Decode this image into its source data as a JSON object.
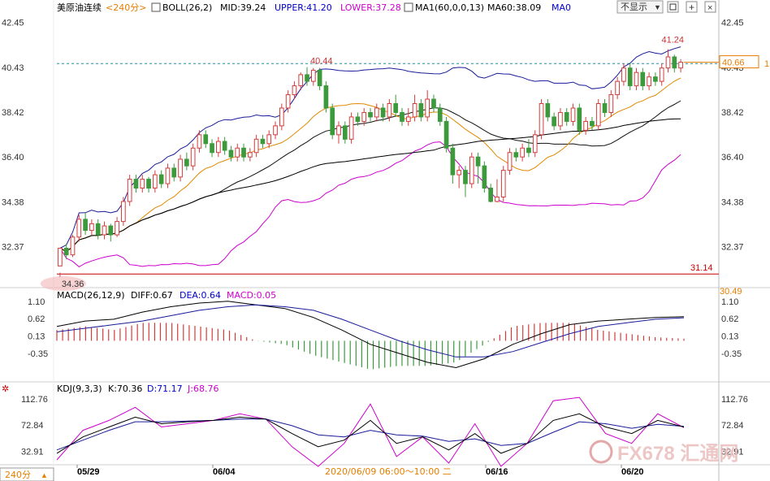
{
  "chart_data": {
    "type": "candlestick",
    "symbol": "美原油连续",
    "period": "<240分>",
    "period_footer": "240分",
    "hide_button": "不显示",
    "boll": {
      "label": "BOLL(26,2)",
      "mid_label": "MID:39.24",
      "upper_label": "UPPER:41.20",
      "lower_label": "LOWER:37.28"
    },
    "ma_label": "MA1(60,0,0,13)",
    "ma60_label": "MA60:38.09",
    "ma0_label": "MA0",
    "price_ylim": [
      30.6,
      42.8
    ],
    "price_ticks": [
      "42.45",
      "40.43",
      "38.42",
      "36.40",
      "34.38",
      "32.37"
    ],
    "price_ticks_val": [
      42.45,
      40.43,
      38.42,
      36.4,
      34.38,
      32.37
    ],
    "right_labels": {
      "bottom": "30.49",
      "current": "40.66",
      "edge": "1"
    },
    "current_price": 40.66,
    "reference_price": 40.6,
    "support_level": 31.14,
    "support_label": "31.14",
    "annotations": {
      "high1": "40.44",
      "high2": "41.24",
      "low": "34.36"
    },
    "candles": [
      [
        31.5,
        32.3,
        31.2,
        31.0
      ],
      [
        32.3,
        32.0,
        32.5,
        31.8
      ],
      [
        32.0,
        32.8,
        32.9,
        31.9
      ],
      [
        32.8,
        33.6,
        33.8,
        32.6
      ],
      [
        33.6,
        33.1,
        33.9,
        32.9
      ],
      [
        33.1,
        33.4,
        33.6,
        32.9
      ],
      [
        33.4,
        32.9,
        33.6,
        32.7
      ],
      [
        32.9,
        33.3,
        33.5,
        32.7
      ],
      [
        33.3,
        32.9,
        33.4,
        32.6
      ],
      [
        32.9,
        33.5,
        33.7,
        32.8
      ],
      [
        33.5,
        34.4,
        34.6,
        33.3
      ],
      [
        34.4,
        35.4,
        35.6,
        34.2
      ],
      [
        35.4,
        35.0,
        35.6,
        34.8
      ],
      [
        35.0,
        35.4,
        35.6,
        34.8
      ],
      [
        35.4,
        35.0,
        35.5,
        34.8
      ],
      [
        35.0,
        35.6,
        35.8,
        34.8
      ],
      [
        35.6,
        35.2,
        35.8,
        35.0
      ],
      [
        35.2,
        35.9,
        36.1,
        35.0
      ],
      [
        35.9,
        35.5,
        36.1,
        35.3
      ],
      [
        35.5,
        36.3,
        36.5,
        35.3
      ],
      [
        36.3,
        36.0,
        36.6,
        35.8
      ],
      [
        36.0,
        36.8,
        37.0,
        35.8
      ],
      [
        36.8,
        37.4,
        37.6,
        36.6
      ],
      [
        37.4,
        37.0,
        37.6,
        36.8
      ],
      [
        37.0,
        36.6,
        37.2,
        36.4
      ],
      [
        36.6,
        37.1,
        37.3,
        36.4
      ],
      [
        37.1,
        36.7,
        37.3,
        36.5
      ],
      [
        36.7,
        36.4,
        36.9,
        36.2
      ],
      [
        36.4,
        36.8,
        37.0,
        36.2
      ],
      [
        36.8,
        36.4,
        37.0,
        36.2
      ],
      [
        36.4,
        36.6,
        36.8,
        36.2
      ],
      [
        36.6,
        37.2,
        37.4,
        36.4
      ],
      [
        37.2,
        37.0,
        37.4,
        36.8
      ],
      [
        37.0,
        37.4,
        37.6,
        36.8
      ],
      [
        37.4,
        37.8,
        38.0,
        37.2
      ],
      [
        37.8,
        38.6,
        38.8,
        37.6
      ],
      [
        38.6,
        39.2,
        39.4,
        38.4
      ],
      [
        39.2,
        39.6,
        39.8,
        39.0
      ],
      [
        39.6,
        40.1,
        40.2,
        39.4
      ],
      [
        40.1,
        39.8,
        40.44,
        39.6
      ],
      [
        39.8,
        40.3,
        40.4,
        39.6
      ],
      [
        40.3,
        39.6,
        40.4,
        39.4
      ],
      [
        39.6,
        38.6,
        39.8,
        38.4
      ],
      [
        38.6,
        37.4,
        38.8,
        37.2
      ],
      [
        37.4,
        37.8,
        38.0,
        37.0
      ],
      [
        37.8,
        37.2,
        38.0,
        37.0
      ],
      [
        37.2,
        38.2,
        38.4,
        37.0
      ],
      [
        38.2,
        38.0,
        38.4,
        37.8
      ],
      [
        38.0,
        38.4,
        38.6,
        37.8
      ],
      [
        38.4,
        38.2,
        38.6,
        38.0
      ],
      [
        38.2,
        38.6,
        38.8,
        38.0
      ],
      [
        38.6,
        38.2,
        38.8,
        38.0
      ],
      [
        38.2,
        38.8,
        39.0,
        38.0
      ],
      [
        38.8,
        38.4,
        39.2,
        38.2
      ],
      [
        38.4,
        38.0,
        38.6,
        37.8
      ],
      [
        38.0,
        38.2,
        38.6,
        37.8
      ],
      [
        38.2,
        38.8,
        39.2,
        38.0
      ],
      [
        38.8,
        38.2,
        39.0,
        38.0
      ],
      [
        38.2,
        39.0,
        39.4,
        38.0
      ],
      [
        39.0,
        38.6,
        39.2,
        38.4
      ],
      [
        38.6,
        38.0,
        38.8,
        37.8
      ],
      [
        38.0,
        36.8,
        38.2,
        36.6
      ],
      [
        36.8,
        35.6,
        37.0,
        35.2
      ],
      [
        35.6,
        35.8,
        36.0,
        35.0
      ],
      [
        35.8,
        35.2,
        36.0,
        34.6
      ],
      [
        35.2,
        36.4,
        36.6,
        35.0
      ],
      [
        36.4,
        36.0,
        36.6,
        35.2
      ],
      [
        36.0,
        35.0,
        36.2,
        34.8
      ],
      [
        35.0,
        34.4,
        35.2,
        34.36
      ],
      [
        34.4,
        34.6,
        35.4,
        34.36
      ],
      [
        34.6,
        35.8,
        36.0,
        34.4
      ],
      [
        35.8,
        36.6,
        36.8,
        35.6
      ],
      [
        36.6,
        36.4,
        36.8,
        36.2
      ],
      [
        36.4,
        36.8,
        37.0,
        36.2
      ],
      [
        36.8,
        36.6,
        37.2,
        36.4
      ],
      [
        36.6,
        37.4,
        37.6,
        36.4
      ],
      [
        37.4,
        38.8,
        39.0,
        37.2
      ],
      [
        38.8,
        38.2,
        39.0,
        38.0
      ],
      [
        38.2,
        37.8,
        38.4,
        37.6
      ],
      [
        37.8,
        38.4,
        38.6,
        37.6
      ],
      [
        38.4,
        38.0,
        38.6,
        37.8
      ],
      [
        38.0,
        38.6,
        38.8,
        37.8
      ],
      [
        38.6,
        37.6,
        38.8,
        37.4
      ],
      [
        37.6,
        38.0,
        38.2,
        37.4
      ],
      [
        38.0,
        37.8,
        38.2,
        37.6
      ],
      [
        37.8,
        38.8,
        39.0,
        37.6
      ],
      [
        38.8,
        38.4,
        39.0,
        38.2
      ],
      [
        38.4,
        39.2,
        39.4,
        38.2
      ],
      [
        39.2,
        39.8,
        40.0,
        39.0
      ],
      [
        39.8,
        40.4,
        40.6,
        39.6
      ],
      [
        40.4,
        39.6,
        40.6,
        39.4
      ],
      [
        39.6,
        40.2,
        40.4,
        39.4
      ],
      [
        40.2,
        39.6,
        40.4,
        39.4
      ],
      [
        39.6,
        40.0,
        40.2,
        39.4
      ],
      [
        40.0,
        39.8,
        40.2,
        39.6
      ],
      [
        39.8,
        40.4,
        40.6,
        39.6
      ],
      [
        40.4,
        40.9,
        41.24,
        40.2
      ],
      [
        40.9,
        40.4,
        41.0,
        40.2
      ],
      [
        40.4,
        40.66,
        40.8,
        40.2
      ]
    ],
    "macd": {
      "label": "MACD(26,12,9)",
      "diff_label": "DIFF:0.67",
      "dea_label": "DEA:0.64",
      "macd_label": "MACD:0.05",
      "ylim": [
        -1.1,
        1.3
      ],
      "ticks": [
        "1.10",
        "0.62",
        "0.13",
        "-0.35"
      ],
      "ticks_val": [
        1.1,
        0.62,
        0.13,
        -0.35
      ],
      "diff": [
        0.4,
        0.55,
        0.6,
        0.8,
        0.95,
        1.05,
        1.1,
        1.0,
        0.9,
        0.65,
        0.3,
        -0.1,
        -0.35,
        -0.6,
        -0.75,
        -0.5,
        -0.1,
        0.2,
        0.45,
        0.55,
        0.6,
        0.65,
        0.67
      ],
      "dea": [
        0.25,
        0.35,
        0.45,
        0.55,
        0.7,
        0.85,
        0.95,
        1.0,
        0.95,
        0.85,
        0.6,
        0.3,
        0.0,
        -0.25,
        -0.45,
        -0.45,
        -0.3,
        -0.05,
        0.2,
        0.4,
        0.5,
        0.6,
        0.64
      ]
    },
    "kdj": {
      "label": "KDJ(9,3,3)",
      "k_label": "K:70.36",
      "d_label": "D:71.17",
      "j_label": "J:68.76",
      "ylim": [
        15,
        130
      ],
      "ticks": [
        "112.76",
        "72.84",
        "32.91"
      ],
      "ticks_val": [
        112.76,
        72.84,
        32.91
      ],
      "k": [
        30,
        55,
        70,
        85,
        75,
        78,
        80,
        85,
        82,
        60,
        40,
        50,
        80,
        45,
        55,
        35,
        60,
        30,
        45,
        80,
        90,
        70,
        60,
        80,
        70
      ],
      "d": [
        35,
        50,
        65,
        78,
        78,
        79,
        80,
        82,
        82,
        72,
        58,
        55,
        65,
        58,
        56,
        48,
        52,
        42,
        45,
        62,
        78,
        75,
        68,
        74,
        71
      ],
      "j": [
        20,
        65,
        80,
        100,
        70,
        75,
        80,
        90,
        82,
        40,
        10,
        45,
        105,
        25,
        55,
        15,
        75,
        10,
        45,
        110,
        115,
        60,
        45,
        90,
        69
      ]
    },
    "x_ticks": [
      "05/29",
      "06/04",
      "06/16",
      "06/20"
    ],
    "x_center_label": "2020/06/09 06:00～10:00 二",
    "watermark": "FX678 汇通网"
  }
}
